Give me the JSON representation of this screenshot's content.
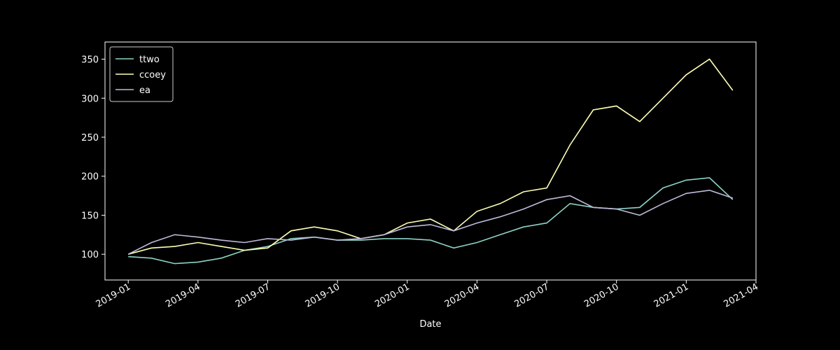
{
  "chart_data": {
    "type": "line",
    "xlabel": "Date",
    "x": [
      "2019-01",
      "2019-02",
      "2019-03",
      "2019-04",
      "2019-05",
      "2019-06",
      "2019-07",
      "2019-08",
      "2019-09",
      "2019-10",
      "2019-11",
      "2019-12",
      "2020-01",
      "2020-02",
      "2020-03",
      "2020-04",
      "2020-05",
      "2020-06",
      "2020-07",
      "2020-08",
      "2020-09",
      "2020-10",
      "2020-11",
      "2020-12",
      "2021-01",
      "2021-02",
      "2021-03"
    ],
    "series": [
      {
        "name": "ttwo",
        "color": "#8dd3c7",
        "values": [
          97,
          95,
          88,
          90,
          95,
          105,
          110,
          120,
          122,
          118,
          118,
          120,
          120,
          118,
          108,
          115,
          125,
          135,
          140,
          165,
          160,
          158,
          160,
          185,
          195,
          198,
          170
        ]
      },
      {
        "name": "ccoey",
        "color": "#ffffb3",
        "values": [
          100,
          108,
          110,
          115,
          110,
          105,
          108,
          130,
          135,
          130,
          120,
          125,
          140,
          145,
          130,
          155,
          165,
          180,
          185,
          240,
          285,
          290,
          270,
          300,
          330,
          350,
          310
        ]
      },
      {
        "name": "ea",
        "color": "#bebada",
        "values": [
          100,
          115,
          125,
          122,
          118,
          115,
          120,
          118,
          122,
          118,
          120,
          125,
          135,
          138,
          130,
          140,
          148,
          158,
          170,
          175,
          160,
          158,
          150,
          165,
          178,
          182,
          172
        ]
      }
    ],
    "xlim": [
      "2018-12",
      "2021-04"
    ],
    "xticks": [
      "2019-01",
      "2019-04",
      "2019-07",
      "2019-10",
      "2020-01",
      "2020-04",
      "2020-07",
      "2020-10",
      "2021-01",
      "2021-04"
    ],
    "ylim": [
      67,
      372
    ],
    "yticks": [
      100,
      150,
      200,
      250,
      300,
      350
    ],
    "legend": "upper-left"
  }
}
